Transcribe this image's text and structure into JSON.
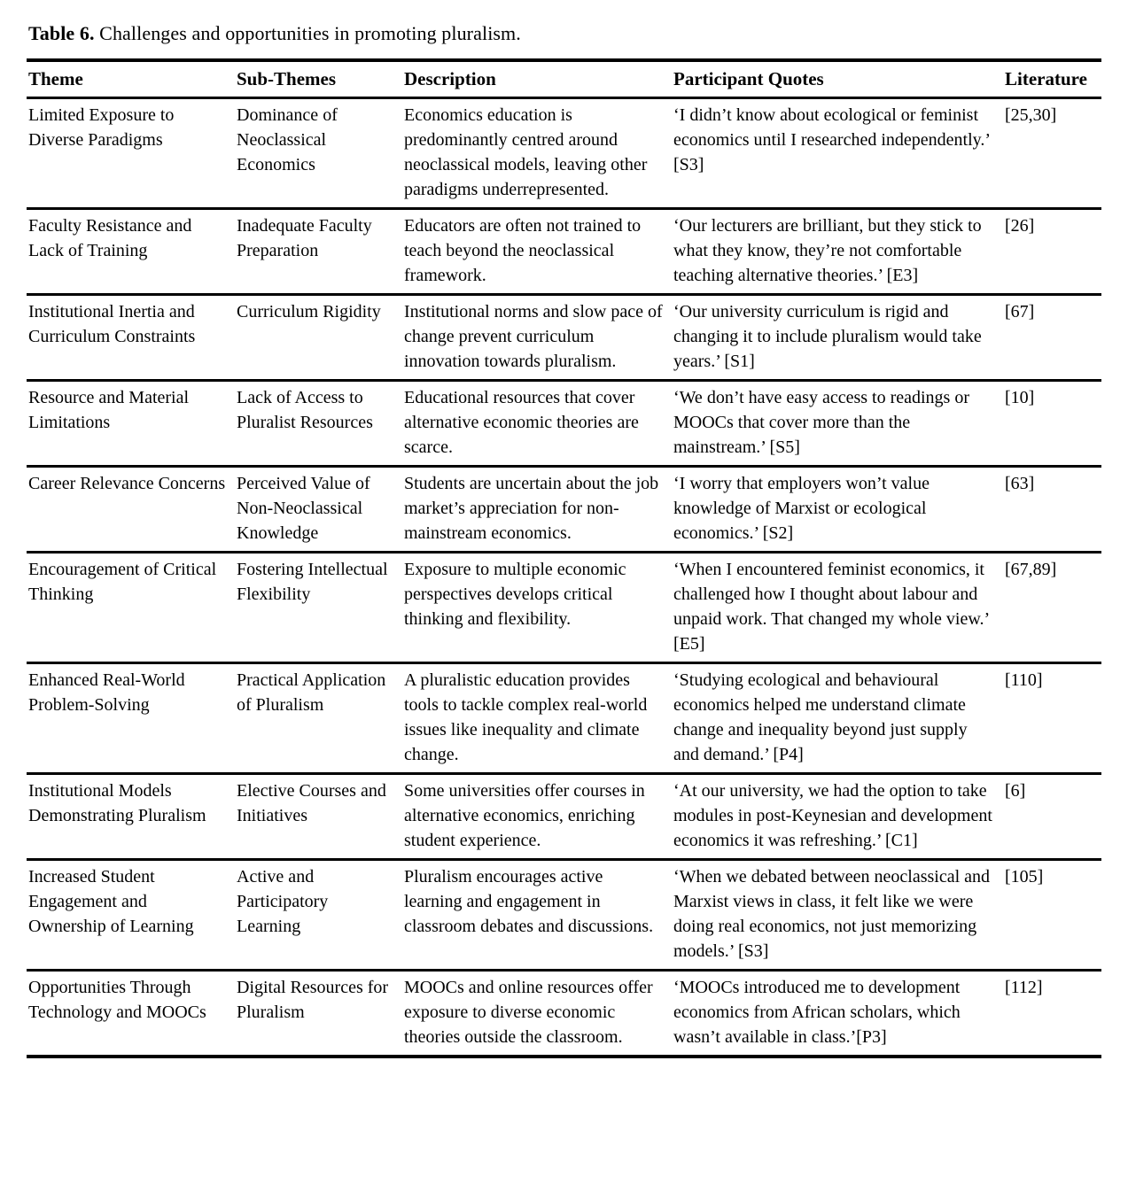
{
  "caption": {
    "label": "Table 6.",
    "text": " Challenges and opportunities in promoting pluralism."
  },
  "table": {
    "columns": [
      {
        "key": "theme",
        "label": "Theme"
      },
      {
        "key": "sub_theme",
        "label": "Sub-Themes"
      },
      {
        "key": "description",
        "label": "Description"
      },
      {
        "key": "quote",
        "label": "Participant Quotes"
      },
      {
        "key": "literature",
        "label": "Literature"
      }
    ],
    "rows": [
      {
        "theme": "Limited Exposure to Diverse Paradigms",
        "sub_theme": "Dominance of Neoclassical Economics",
        "description": "Economics education is predominantly centred around neoclassical models, leaving other paradigms underrepresented.",
        "quote": "‘I didn’t know about ecological or feminist economics until I researched independently.’ [S3]",
        "literature": "[25,30]"
      },
      {
        "theme": "Faculty Resistance and Lack of Training",
        "sub_theme": "Inadequate Faculty Preparation",
        "description": "Educators are often not trained to teach beyond the neoclassical framework.",
        "quote": "‘Our lecturers are brilliant, but they stick to what they know, they’re not comfortable teaching alternative theories.’ [E3]",
        "literature": "[26]"
      },
      {
        "theme": "Institutional Inertia and Curriculum Constraints",
        "sub_theme": "Curriculum Rigidity",
        "description": "Institutional norms and slow pace of change prevent curriculum innovation towards pluralism.",
        "quote": "‘Our university curriculum is rigid and changing it to include pluralism would take years.’ [S1]",
        "literature": "[67]"
      },
      {
        "theme": "Resource and Material Limitations",
        "sub_theme": "Lack of Access to Pluralist Resources",
        "description": "Educational resources that cover alternative economic theories are scarce.",
        "quote": "‘We don’t have easy access to readings or MOOCs that cover more than the mainstream.’ [S5]",
        "literature": "[10]"
      },
      {
        "theme": "Career Relevance Concerns",
        "sub_theme": "Perceived Value of Non-Neoclassical Knowledge",
        "description": "Students are uncertain about the job market’s appreciation for non-mainstream economics.",
        "quote": "‘I worry that employers won’t value knowledge of Marxist or ecological economics.’ [S2]",
        "literature": "[63]"
      },
      {
        "theme": "Encouragement of Critical Thinking",
        "sub_theme": "Fostering Intellectual Flexibility",
        "description": "Exposure to multiple economic perspectives develops critical thinking and flexibility.",
        "quote": "‘When I encountered feminist economics, it challenged how I thought about labour and unpaid work. That changed my whole view.’ [E5]",
        "literature": "[67,89]"
      },
      {
        "theme": "Enhanced Real-World Problem-Solving",
        "sub_theme": "Practical Application of Pluralism",
        "description": "A pluralistic education provides tools to tackle complex real-world issues like inequality and climate change.",
        "quote": "‘Studying ecological and behavioural economics helped me understand climate change and inequality beyond just supply and demand.’ [P4]",
        "literature": "[110]"
      },
      {
        "theme": "Institutional Models Demonstrating Pluralism",
        "sub_theme": "Elective Courses and Initiatives",
        "description": "Some universities offer courses in alternative economics, enriching student experience.",
        "quote": "‘At our university, we had the option to take modules in post-Keynesian and development economics it was refreshing.’ [C1]",
        "literature": "[6]"
      },
      {
        "theme": "Increased Student Engagement and Ownership of Learning",
        "sub_theme": "Active and Participatory Learning",
        "description": "Pluralism encourages active learning and engagement in classroom debates and discussions.",
        "quote": "‘When we debated between neoclassical and Marxist views in class, it felt like we were doing real economics, not just memorizing models.’ [S3]",
        "literature": "[105]"
      },
      {
        "theme": "Opportunities Through Technology and MOOCs",
        "sub_theme": "Digital Resources for Pluralism",
        "description": "MOOCs and online resources offer exposure to diverse economic theories outside the classroom.",
        "quote": "‘MOOCs introduced me to development economics from African scholars, which wasn’t available in class.’[P3]",
        "literature": "[112]"
      }
    ]
  }
}
